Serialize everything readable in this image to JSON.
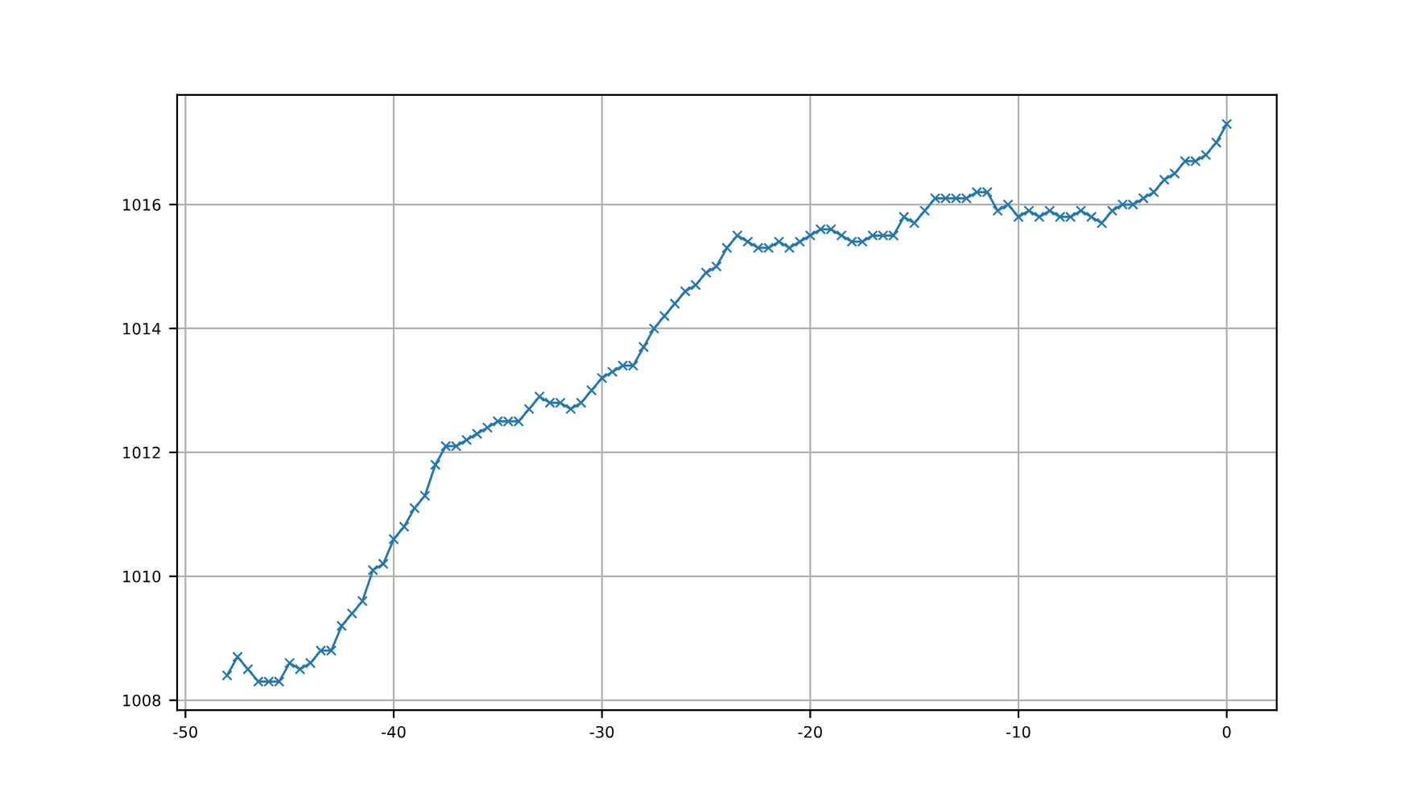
{
  "chart_data": {
    "type": "line",
    "x": [
      -48,
      -47.5,
      -47,
      -46.5,
      -46,
      -45.5,
      -45,
      -44.5,
      -44,
      -43.5,
      -43,
      -42.5,
      -42,
      -41.5,
      -41,
      -40.5,
      -40,
      -39.5,
      -39,
      -38.5,
      -38,
      -37.5,
      -37,
      -36.5,
      -36,
      -35.5,
      -35,
      -34.5,
      -34,
      -33.5,
      -33,
      -32.5,
      -32,
      -31.5,
      -31,
      -30.5,
      -30,
      -29.5,
      -29,
      -28.5,
      -28,
      -27.5,
      -27,
      -26.5,
      -26,
      -25.5,
      -25,
      -24.5,
      -24,
      -23.5,
      -23,
      -22.5,
      -22,
      -21.5,
      -21,
      -20.5,
      -20,
      -19.5,
      -19,
      -18.5,
      -18,
      -17.5,
      -17,
      -16.5,
      -16,
      -15.5,
      -15,
      -14.5,
      -14,
      -13.5,
      -13,
      -12.5,
      -12,
      -11.5,
      -11,
      -10.5,
      -10,
      -9.5,
      -9,
      -8.5,
      -8,
      -7.5,
      -7,
      -6.5,
      -6,
      -5.5,
      -5,
      -4.5,
      -4,
      -3.5,
      -3,
      -2.5,
      -2,
      -1.5,
      -1,
      -0.5,
      0
    ],
    "series": [
      {
        "color": "#1f77b4",
        "values": [
          1008.4,
          1008.7,
          1008.5,
          1008.3,
          1008.3,
          1008.3,
          1008.6,
          1008.5,
          1008.6,
          1008.8,
          1008.8,
          1009.2,
          1009.4,
          1009.6,
          1010.1,
          1010.2,
          1010.6,
          1010.8,
          1011.1,
          1011.3,
          1011.8,
          1012.1,
          1012.1,
          1012.2,
          1012.3,
          1012.4,
          1012.5,
          1012.5,
          1012.5,
          1012.7,
          1012.9,
          1012.8,
          1012.8,
          1012.7,
          1012.8,
          1013.0,
          1013.2,
          1013.3,
          1013.4,
          1013.4,
          1013.7,
          1014.0,
          1014.2,
          1014.4,
          1014.6,
          1014.7,
          1014.9,
          1015.0,
          1015.3,
          1015.5,
          1015.4,
          1015.3,
          1015.3,
          1015.4,
          1015.3,
          1015.4,
          1015.5,
          1015.6,
          1015.6,
          1015.5,
          1015.4,
          1015.4,
          1015.5,
          1015.5,
          1015.5,
          1015.8,
          1015.7,
          1015.9,
          1016.1,
          1016.1,
          1016.1,
          1016.1,
          1016.2,
          1016.2,
          1015.9,
          1016.0,
          1015.8,
          1015.9,
          1015.8,
          1015.9,
          1015.8,
          1015.8,
          1015.9,
          1015.8,
          1015.7,
          1015.9,
          1016.0,
          1016.0,
          1016.1,
          1016.2,
          1016.4,
          1016.5,
          1016.7,
          1016.7,
          1016.8,
          1017.0,
          1017.3
        ]
      }
    ],
    "xlim": [
      -50.4,
      2.4
    ],
    "ylim": [
      1007.84,
      1017.77
    ],
    "xticks": [
      -50,
      -40,
      -30,
      -20,
      -10,
      0
    ],
    "yticks": [
      1008,
      1010,
      1012,
      1014,
      1016
    ],
    "grid": true,
    "marker": "cross",
    "line_style": "solid"
  }
}
